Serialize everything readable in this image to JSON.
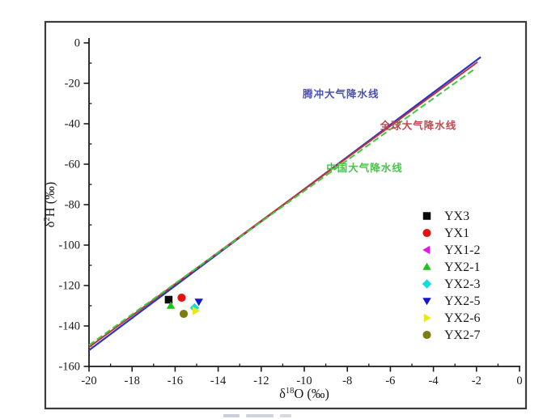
{
  "figure": {
    "background": "#ffffff",
    "border_color": "#3c3c3c",
    "axis_color": "#1a1a1a",
    "text_color": "#1a1a1a"
  },
  "chart_data": {
    "type": "scatter",
    "title": "",
    "x_axis": {
      "title_base": "δ",
      "title_sup": "18",
      "title_rest": "O (‰)",
      "min": -20,
      "max": 0,
      "major_tick_step": 2,
      "minor_tick_step": 1,
      "tick_labels": [
        "-20",
        "-18",
        "-16",
        "-14",
        "-12",
        "-10",
        "-8",
        "-6",
        "-4",
        "-2",
        "0"
      ]
    },
    "y_axis": {
      "title_base": "δ",
      "title_sup": "2",
      "title_rest": "H (‰)",
      "min": -160,
      "max": 0,
      "major_tick_step": 20,
      "minor_tick_step": 10,
      "tick_labels": [
        "0",
        "-20",
        "-40",
        "-60",
        "-80",
        "-100",
        "-120",
        "-140",
        "-160"
      ]
    },
    "reference_lines": [
      {
        "id": "tengchong-lmwl",
        "label": "腾冲大气降水线",
        "line_color": "#2b35c4",
        "label_color": "#4a52b4",
        "style": "solid",
        "points": [
          [
            -20,
            -152
          ],
          [
            -1.8,
            -7
          ]
        ],
        "label_pos": [
          -8.3,
          -27
        ]
      },
      {
        "id": "global-gmwl",
        "label": "全球大气降水线",
        "line_color": "#c43038",
        "label_color": "#c04a52",
        "style": "solid",
        "points": [
          [
            -20,
            -150.5
          ],
          [
            -1.95,
            -9.5
          ]
        ],
        "label_pos": [
          -4.7,
          -42.5
        ]
      },
      {
        "id": "china-mwl",
        "label": "中国大气降水线",
        "line_color": "#3ecb3e",
        "label_color": "#4cc44c",
        "style": "dashed",
        "points": [
          [
            -20,
            -149.5
          ],
          [
            -2.1,
            -13
          ]
        ],
        "label_pos": [
          -7.2,
          -63.5
        ]
      }
    ],
    "series": [
      {
        "name": "YX3",
        "marker": "square",
        "color": "#0a0a0a",
        "points": [
          [
            -16.3,
            -127
          ]
        ]
      },
      {
        "name": "YX1",
        "marker": "circle",
        "color": "#e51212",
        "points": [
          [
            -15.7,
            -126
          ]
        ]
      },
      {
        "name": "YX1-2",
        "marker": "triangle-left",
        "color": "#e316e3",
        "points": [
          [
            -16.32,
            -127.3
          ]
        ]
      },
      {
        "name": "YX2-1",
        "marker": "triangle-up",
        "color": "#18c618",
        "points": [
          [
            -16.2,
            -130
          ]
        ]
      },
      {
        "name": "YX2-3",
        "marker": "diamond",
        "color": "#10dede",
        "points": [
          [
            -15.1,
            -131
          ]
        ]
      },
      {
        "name": "YX2-5",
        "marker": "triangle-down",
        "color": "#1414cc",
        "points": [
          [
            -14.9,
            -128
          ]
        ]
      },
      {
        "name": "YX2-6",
        "marker": "triangle-right",
        "color": "#e9e912",
        "points": [
          [
            -15.05,
            -132.5
          ]
        ]
      },
      {
        "name": "YX2-7",
        "marker": "circle",
        "color": "#7c7c10",
        "points": [
          [
            -15.6,
            -134
          ]
        ]
      }
    ],
    "legend": {
      "position": "right-middle",
      "items": [
        "YX3",
        "YX1",
        "YX1-2",
        "YX2-1",
        "YX2-3",
        "YX2-5",
        "YX2-6",
        "YX2-7"
      ]
    },
    "grid": false
  }
}
